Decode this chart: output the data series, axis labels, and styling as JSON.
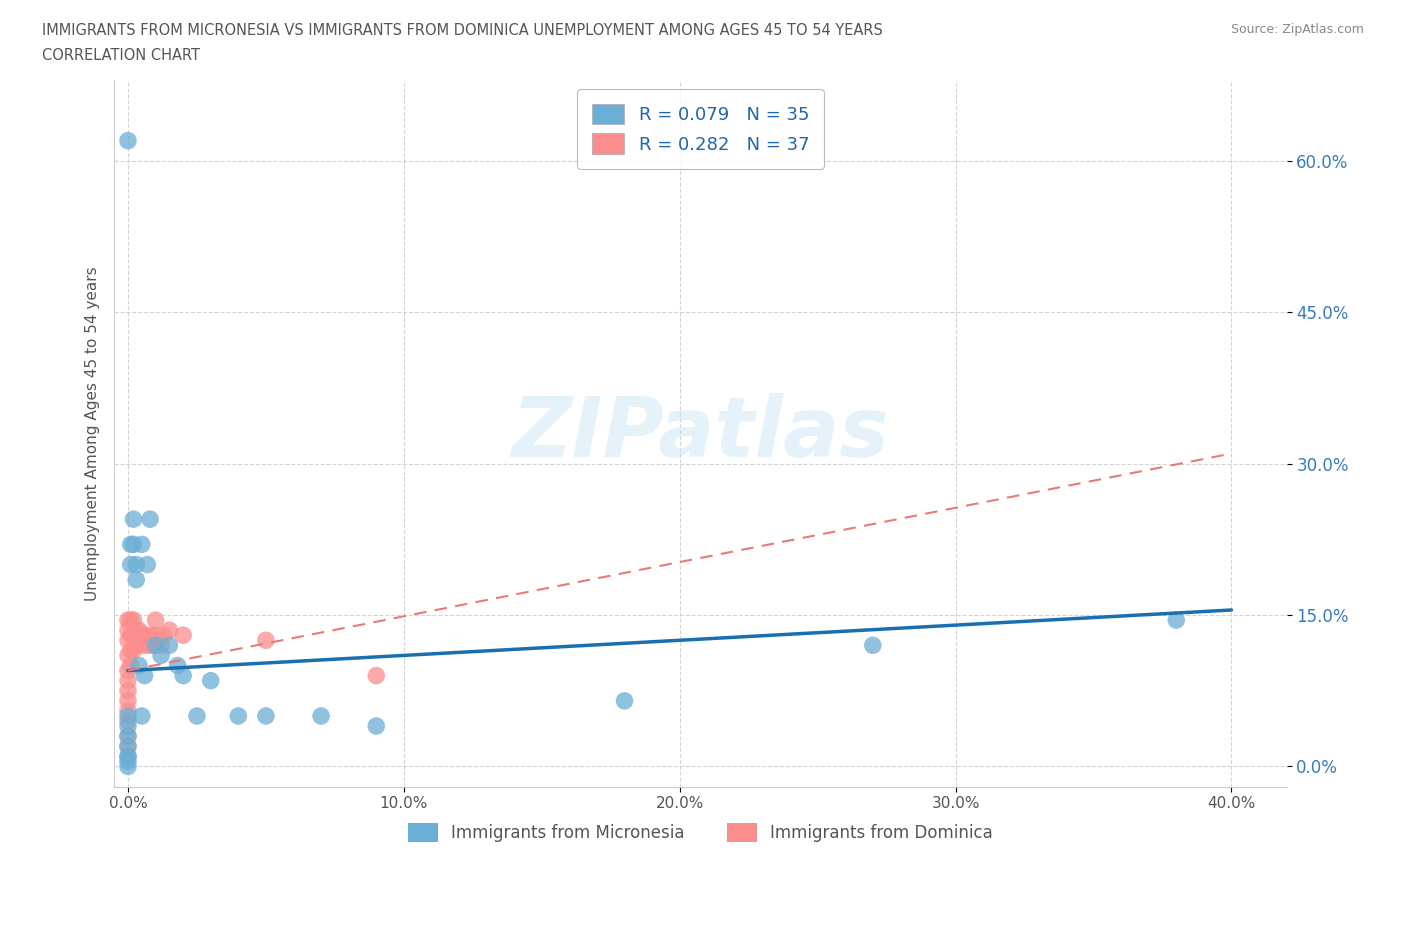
{
  "title_line1": "IMMIGRANTS FROM MICRONESIA VS IMMIGRANTS FROM DOMINICA UNEMPLOYMENT AMONG AGES 45 TO 54 YEARS",
  "title_line2": "CORRELATION CHART",
  "source_text": "Source: ZipAtlas.com",
  "ylabel": "Unemployment Among Ages 45 to 54 years",
  "xlim": [
    -0.005,
    0.42
  ],
  "ylim": [
    -0.02,
    0.68
  ],
  "xtick_labels": [
    "0.0%",
    "10.0%",
    "20.0%",
    "30.0%",
    "40.0%"
  ],
  "xtick_vals": [
    0.0,
    0.1,
    0.2,
    0.3,
    0.4
  ],
  "ytick_labels": [
    "60.0%",
    "45.0%",
    "30.0%",
    "15.0%",
    "0.0%"
  ],
  "ytick_vals": [
    0.6,
    0.45,
    0.3,
    0.15,
    0.0
  ],
  "micronesia_color": "#6baed6",
  "dominica_color": "#fc8d8d",
  "micronesia_line_color": "#1a6faf",
  "dominica_line_color": "#e87a7a",
  "micronesia_R": 0.079,
  "micronesia_N": 35,
  "dominica_R": 0.282,
  "dominica_N": 37,
  "legend_label_micronesia": "Immigrants from Micronesia",
  "legend_label_dominica": "Immigrants from Dominica",
  "micronesia_x": [
    0.0,
    0.0,
    0.0,
    0.0,
    0.0,
    0.0,
    0.0,
    0.0,
    0.0,
    0.001,
    0.001,
    0.002,
    0.002,
    0.003,
    0.003,
    0.004,
    0.005,
    0.005,
    0.006,
    0.007,
    0.008,
    0.01,
    0.012,
    0.015,
    0.018,
    0.02,
    0.025,
    0.03,
    0.04,
    0.05,
    0.07,
    0.09,
    0.18,
    0.27,
    0.38
  ],
  "micronesia_y": [
    0.62,
    0.05,
    0.04,
    0.03,
    0.02,
    0.01,
    0.01,
    0.005,
    0.0,
    0.22,
    0.2,
    0.245,
    0.22,
    0.2,
    0.185,
    0.1,
    0.22,
    0.05,
    0.09,
    0.2,
    0.245,
    0.12,
    0.11,
    0.12,
    0.1,
    0.09,
    0.05,
    0.085,
    0.05,
    0.05,
    0.05,
    0.04,
    0.065,
    0.12,
    0.145
  ],
  "dominica_x": [
    0.0,
    0.0,
    0.0,
    0.0,
    0.0,
    0.0,
    0.0,
    0.0,
    0.0,
    0.0,
    0.0,
    0.0,
    0.001,
    0.001,
    0.001,
    0.001,
    0.002,
    0.002,
    0.002,
    0.003,
    0.003,
    0.004,
    0.004,
    0.005,
    0.005,
    0.006,
    0.007,
    0.008,
    0.009,
    0.01,
    0.01,
    0.012,
    0.013,
    0.015,
    0.02,
    0.05,
    0.09
  ],
  "dominica_y": [
    0.145,
    0.135,
    0.125,
    0.11,
    0.095,
    0.085,
    0.075,
    0.065,
    0.055,
    0.045,
    0.03,
    0.02,
    0.145,
    0.13,
    0.115,
    0.1,
    0.145,
    0.13,
    0.115,
    0.135,
    0.125,
    0.135,
    0.125,
    0.13,
    0.12,
    0.13,
    0.12,
    0.13,
    0.12,
    0.145,
    0.13,
    0.12,
    0.13,
    0.135,
    0.13,
    0.125,
    0.09
  ],
  "watermark_text": "ZIPatlas",
  "background_color": "#ffffff",
  "grid_color": "#d0d0d0",
  "mic_trend_x0": 0.0,
  "mic_trend_y0": 0.095,
  "mic_trend_x1": 0.4,
  "mic_trend_y1": 0.155,
  "dom_trend_x0": 0.0,
  "dom_trend_y0": 0.095,
  "dom_trend_x1": 0.4,
  "dom_trend_y1": 0.31
}
